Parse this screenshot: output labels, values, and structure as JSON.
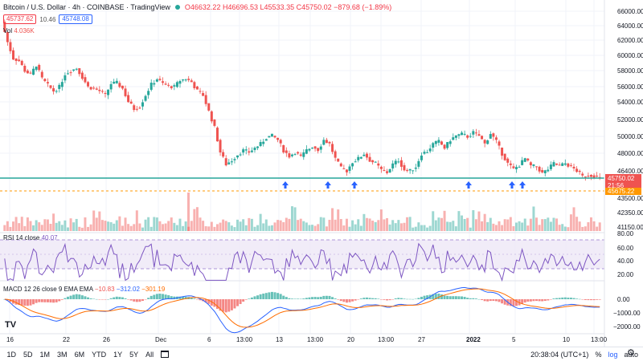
{
  "header": {
    "title": "Bitcoin / U.S. Dollar · 4h · COINBASE · TradingView",
    "o": "O46632.22",
    "h": "H46696.53",
    "l": "L45533.35",
    "c": "C45750.02",
    "chg": "−879.68 (−1.89%)",
    "sell": "45737.62",
    "spread": "10.46",
    "buy": "45748.08",
    "vol": "Vol",
    "vol_value": "4.036K"
  },
  "price_axis": [
    "66000.00",
    "64000.00",
    "62000.00",
    "60000.00",
    "58000.00",
    "56000.00",
    "54000.00",
    "52000.00",
    "50000.00",
    "48000.00",
    "46400.00",
    "43500.00",
    "42350.00",
    "41150.00"
  ],
  "price_tags": {
    "last": "45750.02",
    "countdown": "21:56",
    "bid": "45675.22"
  },
  "rsi": {
    "label": "RSI 14 close",
    "value": "40.07",
    "axis": [
      "80.00",
      "60.00",
      "40.00",
      "20.00"
    ]
  },
  "macd": {
    "label": "MACD 12 26 close 9 EMA EMA",
    "v1": "−10.83",
    "v2": "−312.02",
    "v3": "−301.19",
    "axis": [
      "0.00",
      "−1000.00",
      "−2000.00"
    ]
  },
  "time_axis": [
    "16",
    "22",
    "26",
    "Dec",
    "6",
    "13:00",
    "13",
    "13:00",
    "20",
    "13:00",
    "27",
    "2022",
    "5",
    "10",
    "13:00"
  ],
  "footer": {
    "ranges": [
      "1D",
      "5D",
      "1M",
      "3M",
      "6M",
      "YTD",
      "1Y",
      "5Y",
      "All"
    ],
    "clock": "20:38:04 (UTC+1)",
    "pct": "%",
    "log": "log",
    "auto": "auto"
  },
  "logo": "TV",
  "colors": {
    "up": "#26a69a",
    "down": "#ef5350",
    "rsi": "#7e57c2",
    "macd": "#2962ff",
    "signal": "#ff6d00",
    "support": "#26a69a",
    "arrow": "#2962ff"
  },
  "icons": [
    "arrow-up-icon",
    "gear-icon",
    "calendar-icon"
  ],
  "chart_data": {
    "type": "candlestick",
    "series_price_path": [
      65000,
      62500,
      60500,
      60200,
      59000,
      58500,
      59700,
      58000,
      57200,
      56500,
      57000,
      58600,
      59000,
      59300,
      58200,
      57000,
      56800,
      56500,
      56000,
      57400,
      57500,
      56800,
      55200,
      54300,
      54600,
      56000,
      57300,
      58000,
      57400,
      57100,
      57000,
      57800,
      58000,
      57600,
      56500,
      56000,
      54000,
      52000,
      49000,
      47500,
      48000,
      48700,
      49200,
      49000,
      49500,
      50000,
      50800,
      51000,
      50500,
      49200,
      48500,
      49000,
      48400,
      49200,
      49700,
      49300,
      50500,
      50000,
      48200,
      47000,
      46700,
      47800,
      48200,
      48800,
      48000,
      47600,
      46800,
      46500,
      47500,
      48000,
      46800,
      46700,
      47200,
      48800,
      49100,
      50000,
      50300,
      49500,
      50500,
      51000,
      51200,
      50900,
      51400,
      51000,
      50000,
      51300,
      50300,
      48800,
      47600,
      46900,
      47400,
      48200,
      47300,
      47200,
      46400,
      46900,
      47600,
      47300,
      47600,
      47200,
      46700,
      46000,
      46200,
      46100,
      45750
    ],
    "support_level": 46050,
    "bid_level": 45675.22,
    "last_price": 45750.02
  }
}
